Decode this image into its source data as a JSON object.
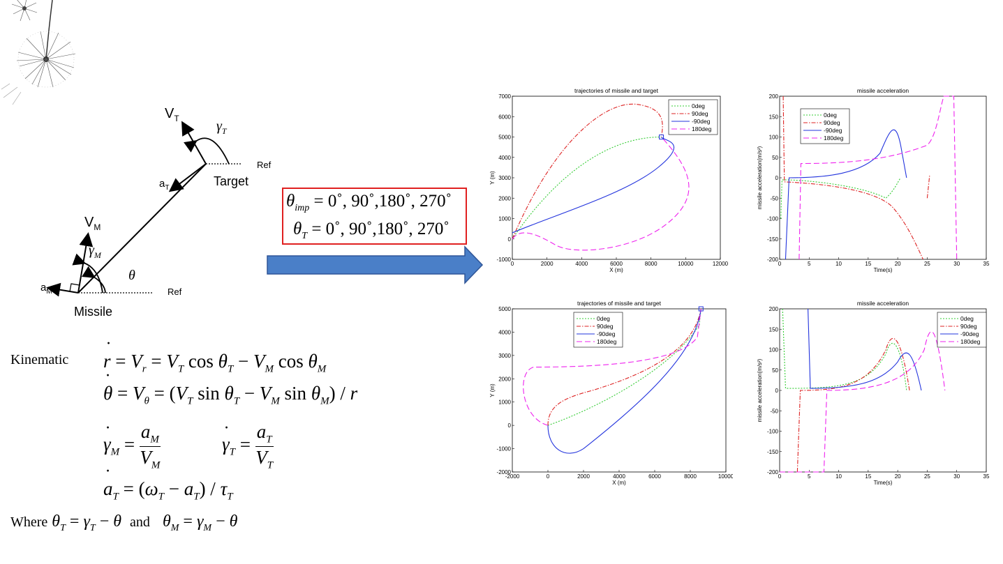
{
  "geometry_diagram": {
    "vt_label": "V",
    "vt_sub": "T",
    "gamma_t_label": "γ",
    "gamma_t_sub": "T",
    "at_label": "a",
    "at_sub": "T",
    "target_label": "Target",
    "ref_label_top": "Ref",
    "vm_label": "V",
    "vm_sub": "M",
    "gamma_m_label": "γ",
    "gamma_m_sub": "M",
    "theta_label": "θ",
    "am_label": "a",
    "am_sub": "M",
    "missile_label": "Missile",
    "ref_label_bottom": "Ref"
  },
  "impact_box": {
    "line1_lhs": "θ",
    "line1_sub": "imp",
    "line1_rhs": "= 0˚, 90˚,180˚, 270˚",
    "line2_lhs": "θ",
    "line2_sub": "T",
    "line2_rhs": "= 0˚, 90˚,180˚, 270˚",
    "border_color": "#e02020"
  },
  "arrow": {
    "color": "#4a7fc8"
  },
  "equations": {
    "kinematic_label": "Kinematic",
    "where_label": "Where",
    "and_label": "and"
  },
  "plots": {
    "top_left": {
      "title": "trajectories of missile and target",
      "xlabel": "X (m)",
      "ylabel": "Y (m)",
      "xticks": [
        "0",
        "2000",
        "4000",
        "6000",
        "8000",
        "10000",
        "12000"
      ],
      "yticks": [
        "-1000",
        "0",
        "1000",
        "2000",
        "3000",
        "4000",
        "5000",
        "6000",
        "7000"
      ],
      "legend": [
        "0deg",
        "90deg",
        "-90deg",
        "180deg"
      ]
    },
    "top_right": {
      "title": "missile acceleration",
      "xlabel": "Time(s)",
      "ylabel": "missile acceleration(m/s²)",
      "xticks": [
        "0",
        "5",
        "10",
        "15",
        "20",
        "25",
        "30",
        "35"
      ],
      "yticks": [
        "-200",
        "-150",
        "-100",
        "-50",
        "0",
        "50",
        "100",
        "150",
        "200"
      ],
      "legend": [
        "0deg",
        "90deg",
        "-90deg",
        "180deg"
      ]
    },
    "bottom_left": {
      "title": "trajectories of missile and target",
      "xlabel": "X (m)",
      "ylabel": "Y (m)",
      "xticks": [
        "-2000",
        "0",
        "2000",
        "4000",
        "6000",
        "8000",
        "10000"
      ],
      "yticks": [
        "-2000",
        "-1000",
        "0",
        "1000",
        "2000",
        "3000",
        "4000",
        "5000"
      ],
      "legend": [
        "0deg",
        "90deg",
        "-90deg",
        "180deg"
      ]
    },
    "bottom_right": {
      "title": "missile acceleration",
      "xlabel": "Time(s)",
      "ylabel": "missile acceleration(m/s²)",
      "xticks": [
        "0",
        "5",
        "10",
        "15",
        "20",
        "25",
        "30",
        "35"
      ],
      "yticks": [
        "-200",
        "-150",
        "-100",
        "-50",
        "0",
        "50",
        "100",
        "150",
        "200"
      ],
      "legend": [
        "0deg",
        "90deg",
        "-90deg",
        "180deg"
      ]
    }
  },
  "series_colors": {
    "0deg": "#33cc33",
    "90deg": "#dd2222",
    "-90deg": "#2233dd",
    "180deg": "#ee22ee"
  }
}
